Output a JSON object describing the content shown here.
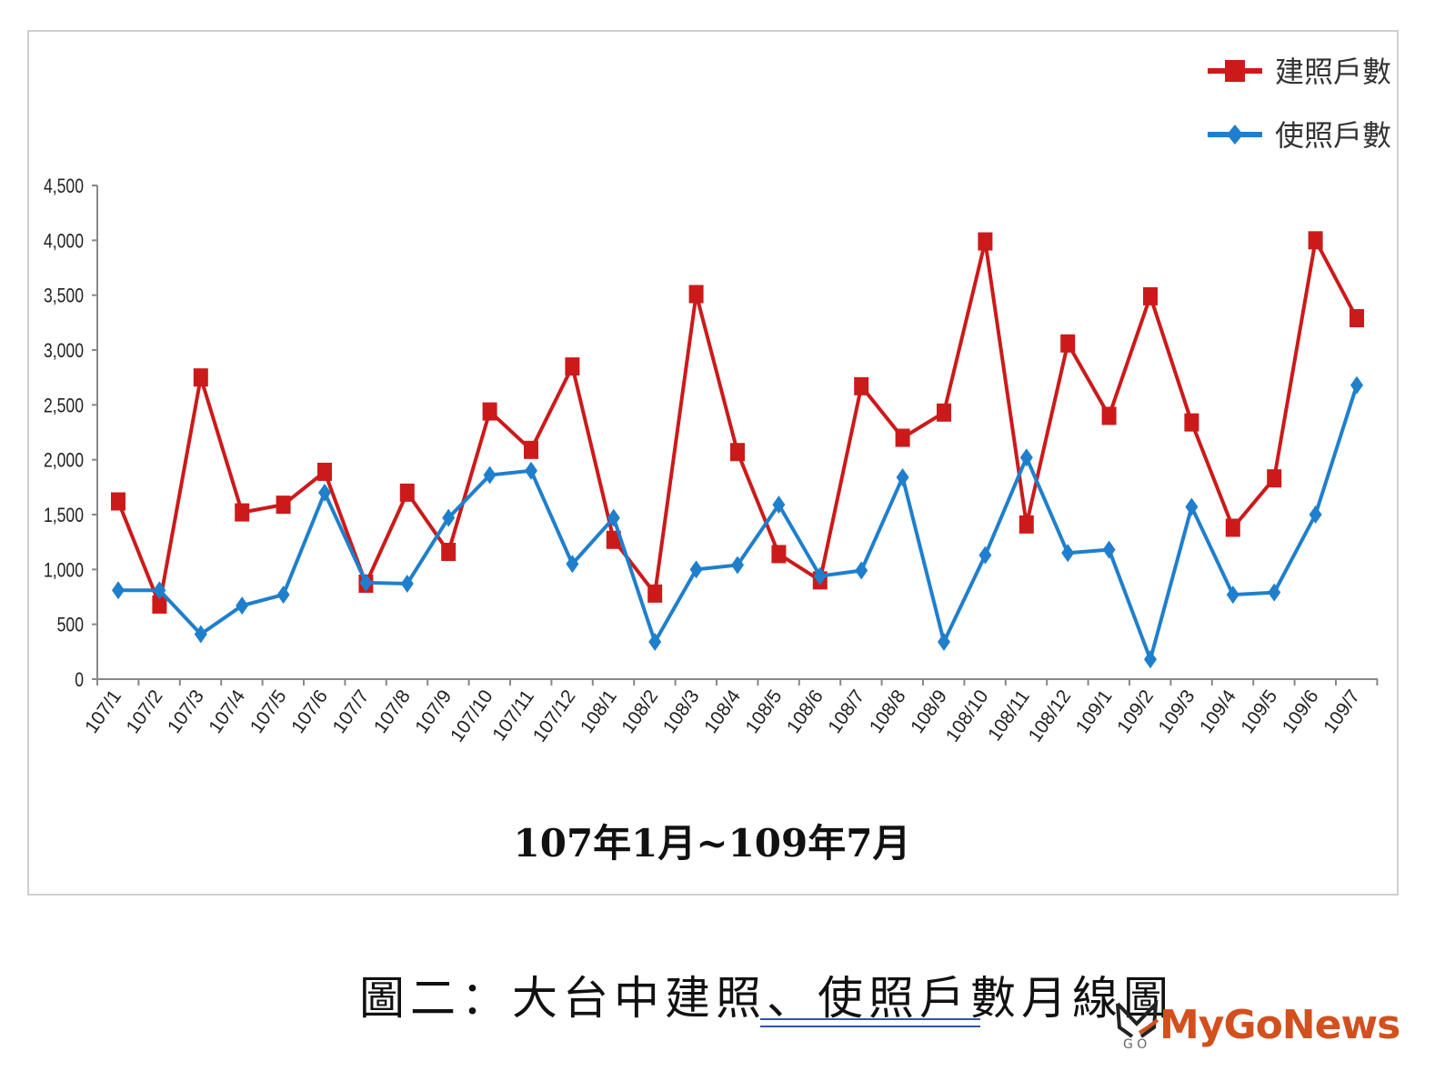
{
  "chart_data": {
    "type": "line",
    "title": "",
    "xlabel": "107年1月~109年7月",
    "ylabel": "",
    "ylim": [
      0,
      4500
    ],
    "yticks": [
      "0",
      "500",
      "1,000",
      "1,500",
      "2,000",
      "2,500",
      "3,000",
      "3,500",
      "4,000",
      "4,500"
    ],
    "ytick_values": [
      0,
      500,
      1000,
      1500,
      2000,
      2500,
      3000,
      3500,
      4000,
      4500
    ],
    "grid": false,
    "legend_position": "top-right",
    "categories": [
      "107/1",
      "107/2",
      "107/3",
      "107/4",
      "107/5",
      "107/6",
      "107/7",
      "107/8",
      "107/9",
      "107/10",
      "107/11",
      "107/12",
      "108/1",
      "108/2",
      "108/3",
      "108/4",
      "108/5",
      "108/6",
      "108/7",
      "108/8",
      "108/9",
      "108/10",
      "108/11",
      "108/12",
      "109/1",
      "109/2",
      "109/3",
      "109/4",
      "109/5",
      "109/6",
      "109/7"
    ],
    "series": [
      {
        "name": "建照戶數",
        "color": "#cc1a1a",
        "marker": "square",
        "values": [
          1620,
          680,
          2750,
          1520,
          1590,
          1890,
          870,
          1700,
          1160,
          2440,
          2090,
          2850,
          1270,
          780,
          3510,
          2070,
          1140,
          900,
          2670,
          2200,
          2430,
          3990,
          1410,
          3060,
          2400,
          3490,
          2340,
          1380,
          1830,
          4000,
          3290
        ]
      },
      {
        "name": "使照戶數",
        "color": "#1f7fcc",
        "marker": "diamond",
        "values": [
          810,
          810,
          410,
          670,
          770,
          1700,
          880,
          870,
          1470,
          1860,
          1900,
          1050,
          1470,
          340,
          1000,
          1040,
          1590,
          940,
          990,
          1840,
          340,
          1130,
          2020,
          1150,
          1180,
          180,
          1570,
          770,
          790,
          1500,
          2680
        ]
      }
    ]
  },
  "caption": "圖二：大台中建照、使照戶數月線圖",
  "logo": {
    "text": "MyGoNews",
    "mark": "GO",
    "color": "#d2501e"
  }
}
